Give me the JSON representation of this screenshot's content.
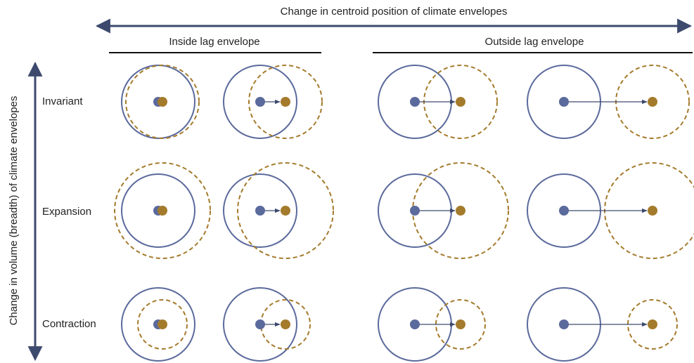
{
  "top_label": "Change in centroid position of climate envelopes",
  "column_groups": [
    "Inside lag envelope",
    "Outside lag envelope"
  ],
  "side_label": "Change in volume (breadth) of climate envelopes",
  "rows": [
    "Invariant",
    "Expansion",
    "Contraction"
  ]
}
